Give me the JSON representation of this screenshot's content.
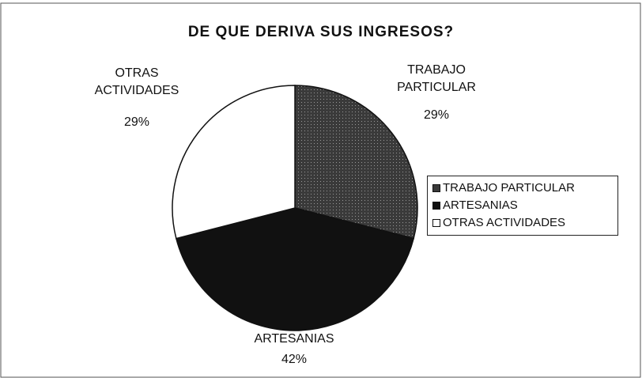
{
  "chart_data": {
    "type": "pie",
    "title": "DE QUE DERIVA SUS INGRESOS?",
    "categories": [
      "TRABAJO PARTICULAR",
      "ARTESANIAS",
      "OTRAS ACTIVIDADES"
    ],
    "values": [
      29,
      42,
      29
    ],
    "value_labels": [
      "29%",
      "42%",
      "29%"
    ],
    "colors": [
      "#3a3a3a",
      "#111111",
      "#ffffff"
    ],
    "legend": "right"
  }
}
